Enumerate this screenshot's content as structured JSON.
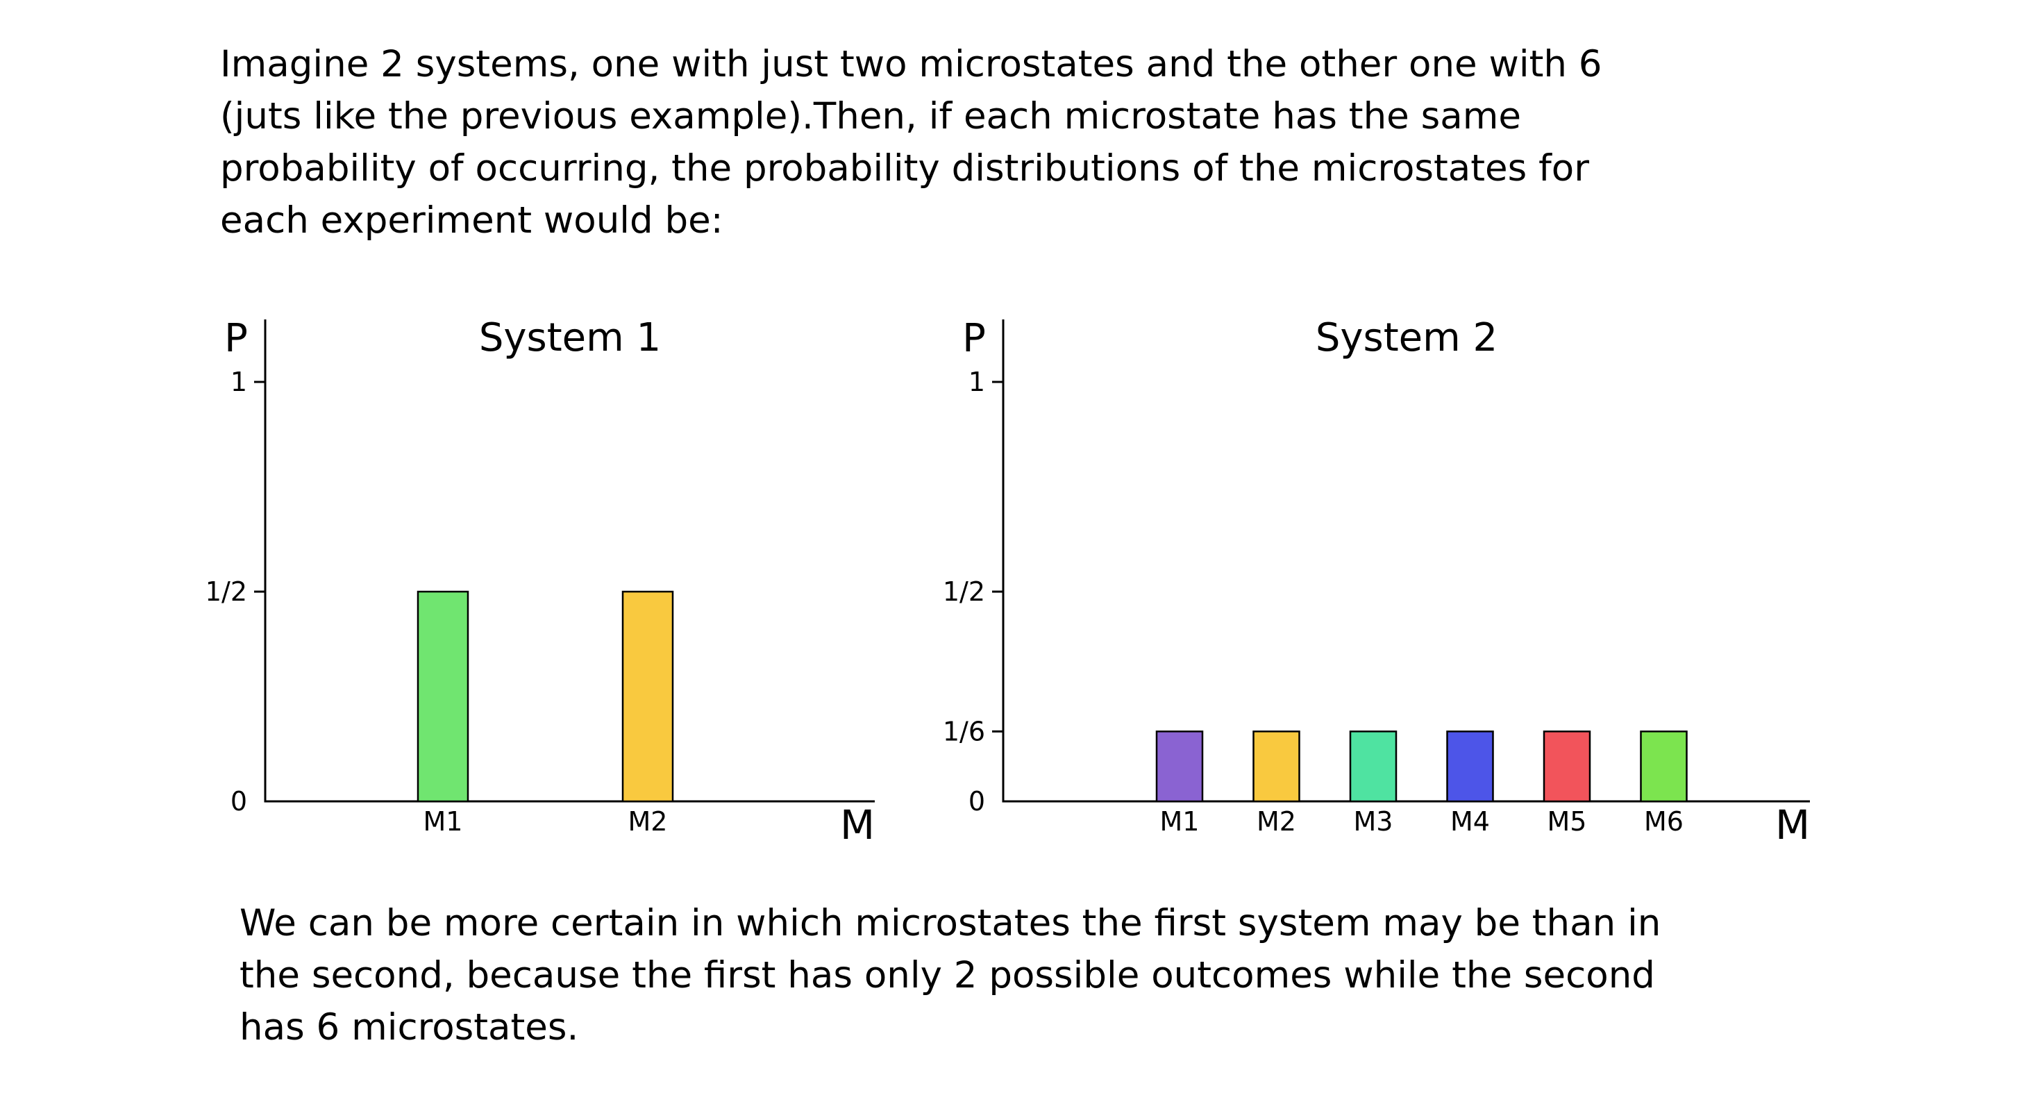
{
  "page": {
    "background_color": "#ffffff",
    "text_color": "#000000",
    "intro_text": "Imagine 2 systems, one with just two microstates and the other one with 6\n(juts like the previous example).Then, if each microstate has the same\nprobability of occurring, the probability distributions of the microstates for\neach experiment would be:",
    "conclusion_text": "We can be more certain in which microstates the first system may be than in\nthe second, because the first has only 2 possible outcomes while the second\nhas 6 microstates."
  },
  "chart_data": [
    {
      "type": "bar",
      "title": "System 1",
      "xlabel": "M",
      "ylabel": "P",
      "categories": [
        "M1",
        "M2"
      ],
      "values": [
        0.5,
        0.5
      ],
      "value_labels": [
        "1/2",
        "1/2"
      ],
      "bar_colors": [
        "#70e570",
        "#f9c93f"
      ],
      "bar_edge_color": "#000000",
      "ytick_labels": [
        "1",
        "1/2",
        "0"
      ],
      "ytick_values": [
        1,
        0.5,
        0
      ],
      "ylim": [
        0,
        1.15
      ],
      "grid": false,
      "legend": "none"
    },
    {
      "type": "bar",
      "title": "System 2",
      "xlabel": "M",
      "ylabel": "P",
      "categories": [
        "M1",
        "M2",
        "M3",
        "M4",
        "M5",
        "M6"
      ],
      "values": [
        0.1667,
        0.1667,
        0.1667,
        0.1667,
        0.1667,
        0.1667
      ],
      "value_labels": [
        "1/6",
        "1/6",
        "1/6",
        "1/6",
        "1/6",
        "1/6"
      ],
      "bar_colors": [
        "#8a63d2",
        "#f9c93f",
        "#4fe3a1",
        "#4d55e8",
        "#f2545b",
        "#7ce44f"
      ],
      "bar_edge_color": "#000000",
      "ytick_labels": [
        "1",
        "1/2",
        "1/6",
        "0"
      ],
      "ytick_values": [
        1,
        0.5,
        0.1667,
        0
      ],
      "ylim": [
        0,
        1.15
      ],
      "grid": false,
      "legend": "none"
    }
  ]
}
